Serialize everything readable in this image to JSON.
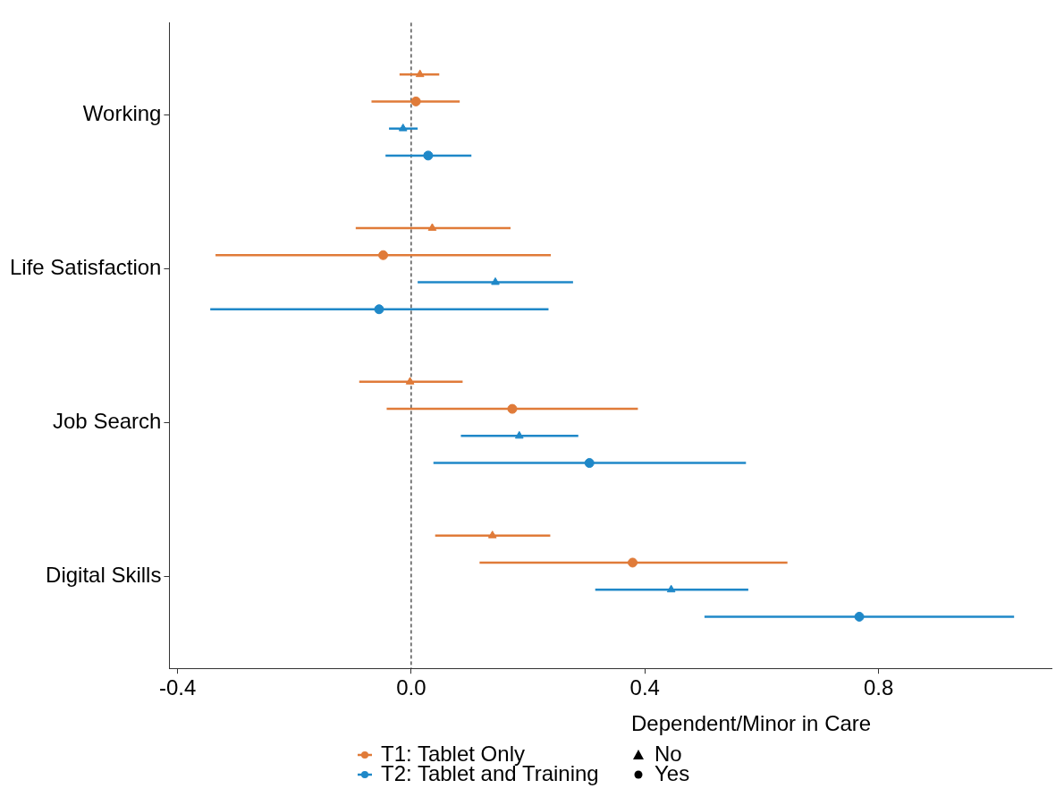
{
  "chart_data": {
    "type": "scatter",
    "orientation": "horizontal",
    "categories": [
      "Working",
      "Life Satisfaction",
      "Job Search",
      "Digital Skills"
    ],
    "series": [
      {
        "color": "#e07b39",
        "marker": "triangle",
        "values": [
          0.015,
          0.036,
          -0.002,
          0.139
        ],
        "errors": [
          [
            -0.02,
            0.048
          ],
          [
            -0.095,
            0.17
          ],
          [
            -0.089,
            0.088
          ],
          [
            0.041,
            0.238
          ]
        ]
      },
      {
        "name": "T1: Tablet Only",
        "color": "#e07b39",
        "marker": "circle",
        "values": [
          0.008,
          -0.048,
          0.173,
          0.379
        ],
        "errors": [
          [
            -0.068,
            0.083
          ],
          [
            -0.335,
            0.239
          ],
          [
            -0.042,
            0.388
          ],
          [
            0.117,
            0.644
          ]
        ]
      },
      {
        "color": "#1f88c8",
        "marker": "triangle",
        "values": [
          -0.014,
          0.144,
          0.185,
          0.445
        ],
        "errors": [
          [
            -0.038,
            0.011
          ],
          [
            0.011,
            0.277
          ],
          [
            0.085,
            0.286
          ],
          [
            0.315,
            0.577
          ]
        ]
      },
      {
        "name": "T2: Tablet and Training",
        "color": "#1f88c8",
        "marker": "circle",
        "values": [
          0.029,
          -0.055,
          0.305,
          0.767
        ],
        "errors": [
          [
            -0.044,
            0.103
          ],
          [
            -0.344,
            0.235
          ],
          [
            0.038,
            0.573
          ],
          [
            0.502,
            1.032
          ]
        ]
      }
    ],
    "xlim": [
      -0.414,
      1.096
    ],
    "xticks": [
      -0.4,
      {
        "value": 0,
        "label": "0.0"
      },
      0.4,
      0.8
    ],
    "ref_lines": [
      {
        "axis": "x",
        "value": 0,
        "color": "#000000",
        "line_style": "dashed"
      }
    ],
    "grid": false,
    "legend": "bottom",
    "legend_title": "Dependent/Minor in Care",
    "annotations": [
      "No",
      "Yes"
    ]
  }
}
